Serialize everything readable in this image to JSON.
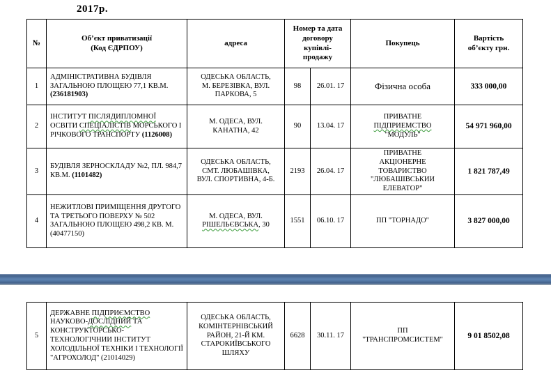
{
  "page": {
    "title": "2017р."
  },
  "divider": {
    "color": "#5d82af"
  },
  "table": {
    "headers": {
      "num": "№",
      "object": "Об’єкт приватизації\n(Код ЄДРПОУ)",
      "address": "адреса",
      "contract": "Номер та дата\nдоговору\nкупівлі-\nпродажу",
      "buyer": "Покупець",
      "price": "Вартість\nоб’єкту грн."
    },
    "rows": [
      {
        "num": "1",
        "object": [
          {
            "t": "АДМІНІСТРАТИВНА БУДІВЛЯ ЗАГАЛЬНОЮ ПЛОЩЕЮ 77,1 КВ.М. "
          },
          {
            "t": "(236181903)",
            "cls": "b"
          }
        ],
        "address": [
          {
            "t": "ОДЕСЬКА ОБЛАСТЬ,\nМ. БЕРЕЗІВКА, ВУЛ.\nПАРКОВА, 5"
          }
        ],
        "contract_no": "98",
        "contract_date": "26.01. 17",
        "buyer": [
          {
            "t": "Фізична особа"
          }
        ],
        "price": "333 000,00"
      },
      {
        "num": "2",
        "object": [
          {
            "t": "ІНСТИТУТ "
          },
          {
            "t": "ПІСЛЯДИПЛОМНОЇ",
            "cls": "sq"
          },
          {
            "t": " ОСВІТИ "
          },
          {
            "t": "СПЕЦІАЛІСТІВ",
            "cls": "sq"
          },
          {
            "t": " МОРСЬКОГО І РІЧКОВОГО ТРАНСПОРТУ "
          },
          {
            "t": "(1126008)",
            "cls": "b"
          }
        ],
        "address": [
          {
            "t": "М. ОДЕСА, ВУЛ.\nКАНАТНА, 42"
          }
        ],
        "contract_no": "90",
        "contract_date": "13.04. 17",
        "buyer": [
          {
            "t": "ПРИВАТНЕ\n"
          },
          {
            "t": "ПІДПРИЕМСТВО",
            "cls": "sq"
          },
          {
            "t": "\n\"МОДУЛЬ\""
          }
        ],
        "price": "54 971 960,00"
      },
      {
        "num": "3",
        "object": [
          {
            "t": "БУДІВЛЯ ЗЕРНОСКЛАДУ №2, ПЛ. 984,7 КВ.М.  "
          },
          {
            "t": "(1101482)",
            "cls": "b"
          }
        ],
        "address": [
          {
            "t": "ОДЕСЬКА ОБЛАСТЬ,\nСМТ. ЛЮБАШІВКА,\nВУЛ. СПОРТИВНА,  4-Б."
          }
        ],
        "contract_no": "2193",
        "contract_date": "26.04. 17",
        "buyer": [
          {
            "t": "ПРИВАТНЕ\nАКЦІОНЕРНЕ\nТОВАРИСТВО\n\"ЛЮБАШІВСЬКИИ\nЕЛЕВАТОР\""
          }
        ],
        "price": "1 821 787,49"
      },
      {
        "num": "4",
        "object": [
          {
            "t": "НЕЖИТЛОВІ ПРИМІЩЕННЯ ДРУГОГО ТА ТРЕТЬОГО ПОВЕРХУ № 502 ЗАГАЛЬНОЮ ПЛОЩЕЮ 498,2 КВ. М. (40477150)"
          }
        ],
        "address": [
          {
            "t": "М. ОДЕСА, ВУЛ.\n"
          },
          {
            "t": "РІШЕЛЬЄВСЬКА",
            "cls": "sq"
          },
          {
            "t": ",  30"
          }
        ],
        "contract_no": "1551",
        "contract_date": "06.10. 17",
        "buyer": [
          {
            "t": "ПП \"ТОРНАДО\""
          }
        ],
        "price": "3 827 000,00"
      },
      {
        "num": "5",
        "object": [
          {
            "t": "ДЕРЖАВНЕ "
          },
          {
            "t": "ПІДПРИЄМСТВО",
            "cls": "sq"
          },
          {
            "t": " НАУКОВО-"
          },
          {
            "t": "ДОСЛІДНИЙ",
            "cls": "sq"
          },
          {
            "t": " ТА КОНСТРУКТОРСЬКО-ТЕХНОЛОГІЧНИИ ІНСТИТУТ ХОЛОДІЛЬНОЇ ТЕХНІКИ І ТЕХНОЛОГІЇ \"АГРОХОЛОД\" (21014029)"
          }
        ],
        "address": [
          {
            "t": "ОДЕСЬКА ОБЛАСТЬ,\nКОМІНТЕРНІВСЬКИЙ\nРАЙОН, 21-Й КМ.\nСТАРОКИЇВСЬКОГО\nШЛЯХУ"
          }
        ],
        "contract_no": "6628",
        "contract_date": "30.11. 17",
        "buyer": [
          {
            "t": "ПП\n\"ТРАНСПРОМСИСТЕМ\""
          }
        ],
        "price": "9 01 8502,08"
      }
    ]
  }
}
